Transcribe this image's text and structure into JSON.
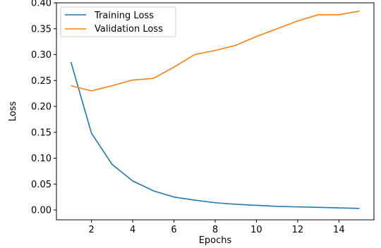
{
  "chart_data": {
    "type": "line",
    "title": "",
    "xlabel": "Epochs",
    "ylabel": "Loss",
    "xlim": [
      0.3,
      15.7
    ],
    "ylim": [
      -0.019,
      0.4
    ],
    "xticks": [
      2,
      4,
      6,
      8,
      10,
      12,
      14
    ],
    "yticks": [
      0.0,
      0.05,
      0.1,
      0.15,
      0.2,
      0.25,
      0.3,
      0.35,
      0.4
    ],
    "x": [
      1,
      2,
      3,
      4,
      5,
      6,
      7,
      8,
      9,
      10,
      11,
      12,
      13,
      14,
      15
    ],
    "series": [
      {
        "name": "Training Loss",
        "color": "#1f77b4",
        "values": [
          0.286,
          0.148,
          0.088,
          0.056,
          0.037,
          0.025,
          0.019,
          0.014,
          0.011,
          0.009,
          0.007,
          0.006,
          0.005,
          0.004,
          0.003
        ]
      },
      {
        "name": "Validation Loss",
        "color": "#ff7f0e",
        "values": [
          0.24,
          0.23,
          0.24,
          0.251,
          0.254,
          0.276,
          0.3,
          0.308,
          0.318,
          0.335,
          0.35,
          0.365,
          0.377,
          0.377,
          0.384
        ]
      }
    ],
    "grid": false,
    "legend_position": "top-left"
  }
}
